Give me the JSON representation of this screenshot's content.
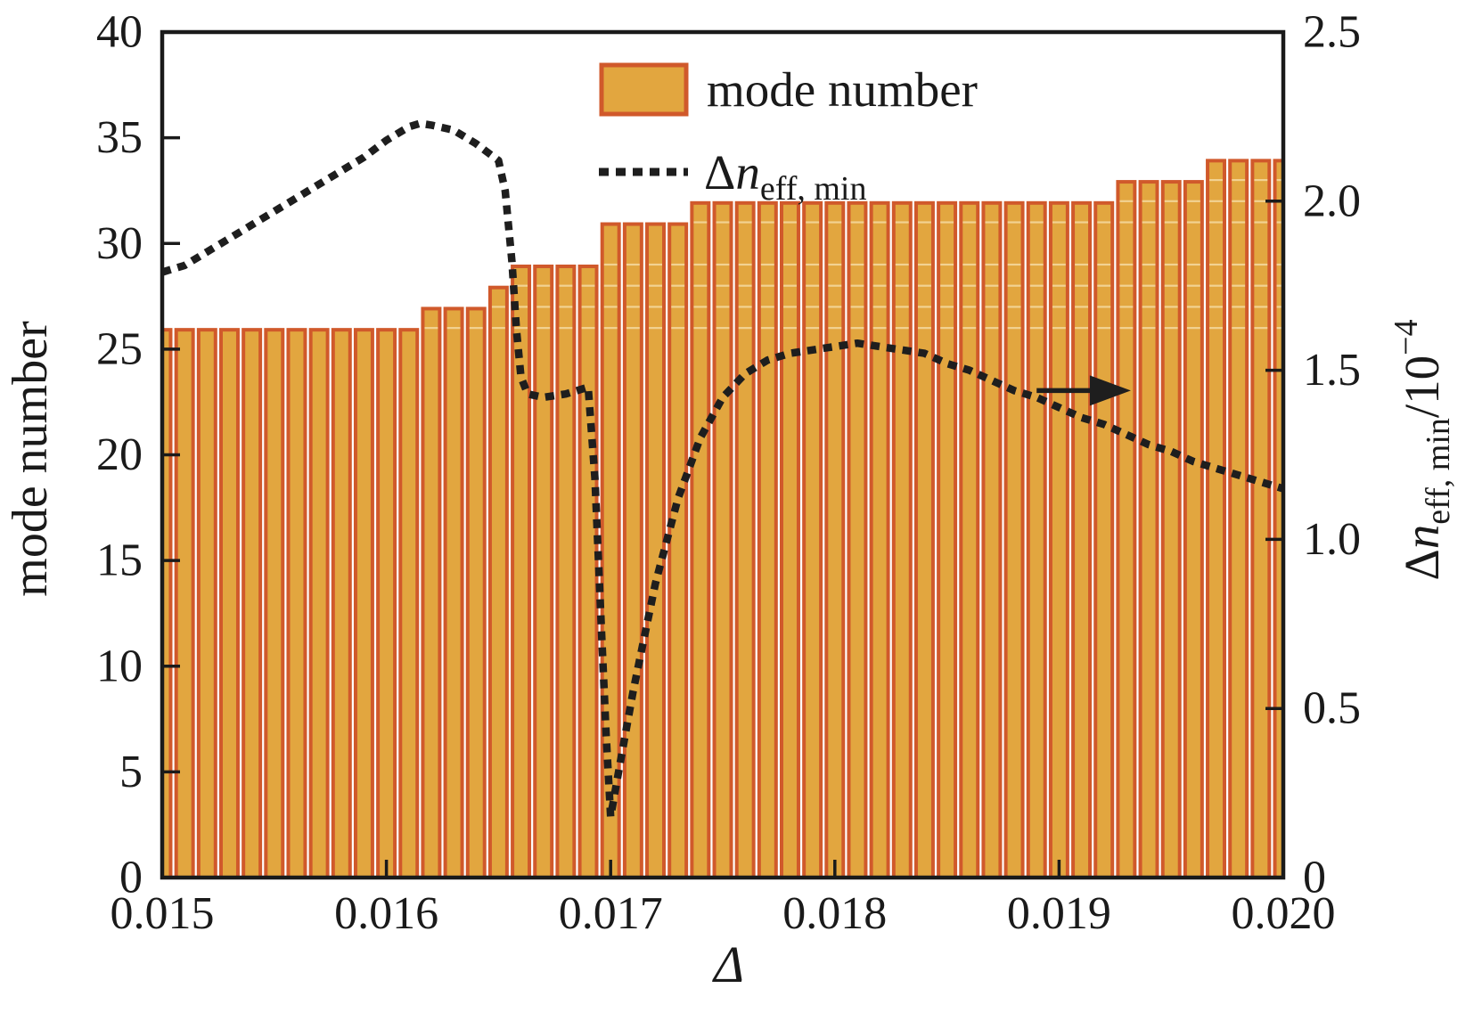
{
  "chart_data": {
    "type": "bar",
    "title": "",
    "xlabel": "Δ",
    "ylabel_left": "mode number",
    "ylabel_right_parts": {
      "prefix": "Δ",
      "var": "n",
      "sub": "eff, min",
      "slash": "/10",
      "sup": "−4"
    },
    "xlim": [
      0.015,
      0.02
    ],
    "ylim_left": [
      0,
      40
    ],
    "ylim_right": [
      0,
      2.5
    ],
    "grid": false,
    "legend_position": "upper center inside",
    "x_tick_values": [
      0.015,
      0.016,
      0.017,
      0.018,
      0.019,
      0.02
    ],
    "x_tick_labels": [
      "0.015",
      "0.016",
      "0.017",
      "0.018",
      "0.019",
      "0.020"
    ],
    "y_left_tick_values": [
      0,
      5,
      10,
      15,
      20,
      25,
      30,
      35,
      40
    ],
    "y_left_tick_labels": [
      "0",
      "5",
      "10",
      "15",
      "20",
      "25",
      "30",
      "35",
      "40"
    ],
    "y_right_tick_values": [
      0,
      0.5,
      1.0,
      1.5,
      2.0,
      2.5
    ],
    "y_right_tick_labels": [
      "0",
      "0.5",
      "1.0",
      "1.5",
      "2.0",
      "2.5"
    ],
    "categories": [
      0.015,
      0.0151,
      0.0152,
      0.0153,
      0.0154,
      0.0155,
      0.0156,
      0.0157,
      0.0158,
      0.0159,
      0.016,
      0.0161,
      0.0162,
      0.0163,
      0.0164,
      0.0165,
      0.0166,
      0.0167,
      0.0168,
      0.0169,
      0.017,
      0.0171,
      0.0172,
      0.0173,
      0.0174,
      0.0175,
      0.0176,
      0.0177,
      0.0178,
      0.0179,
      0.018,
      0.0181,
      0.0182,
      0.0183,
      0.0184,
      0.0185,
      0.0186,
      0.0187,
      0.0188,
      0.0189,
      0.019,
      0.0191,
      0.0192,
      0.0193,
      0.0194,
      0.0195,
      0.0196,
      0.0197,
      0.0198,
      0.0199,
      0.02
    ],
    "series": [
      {
        "name": "mode number",
        "type": "bar",
        "axis": "left",
        "values": [
          26,
          26,
          26,
          26,
          26,
          26,
          26,
          26,
          26,
          26,
          26,
          26,
          27,
          27,
          27,
          28,
          29,
          29,
          29,
          29,
          31,
          31,
          31,
          31,
          32,
          32,
          32,
          32,
          32,
          32,
          32,
          32,
          32,
          32,
          32,
          32,
          32,
          32,
          32,
          32,
          32,
          32,
          32,
          33,
          33,
          33,
          33,
          34,
          34,
          34,
          34
        ]
      },
      {
        "name": "Δn_eff,min",
        "type": "line",
        "axis": "right",
        "points": [
          [
            0.015,
            1.79
          ],
          [
            0.0151,
            1.81
          ],
          [
            0.0152,
            1.85
          ],
          [
            0.0153,
            1.89
          ],
          [
            0.0154,
            1.93
          ],
          [
            0.0155,
            1.97
          ],
          [
            0.0156,
            2.01
          ],
          [
            0.0157,
            2.05
          ],
          [
            0.0158,
            2.09
          ],
          [
            0.0159,
            2.13
          ],
          [
            0.016,
            2.18
          ],
          [
            0.0161,
            2.22
          ],
          [
            0.01615,
            2.23
          ],
          [
            0.0162,
            2.225
          ],
          [
            0.0163,
            2.21
          ],
          [
            0.0164,
            2.17
          ],
          [
            0.0165,
            2.12
          ],
          [
            0.01653,
            2.03
          ],
          [
            0.01656,
            1.82
          ],
          [
            0.01658,
            1.62
          ],
          [
            0.0166,
            1.48
          ],
          [
            0.01663,
            1.43
          ],
          [
            0.0167,
            1.42
          ],
          [
            0.0168,
            1.43
          ],
          [
            0.0169,
            1.45
          ],
          [
            0.01693,
            1.18
          ],
          [
            0.01696,
            0.72
          ],
          [
            0.01698,
            0.42
          ],
          [
            0.017,
            0.18
          ],
          [
            0.01704,
            0.33
          ],
          [
            0.0171,
            0.55
          ],
          [
            0.01715,
            0.71
          ],
          [
            0.0172,
            0.87
          ],
          [
            0.0173,
            1.12
          ],
          [
            0.0174,
            1.3
          ],
          [
            0.0175,
            1.42
          ],
          [
            0.0176,
            1.49
          ],
          [
            0.0177,
            1.53
          ],
          [
            0.0178,
            1.55
          ],
          [
            0.018,
            1.57
          ],
          [
            0.0181,
            1.58
          ],
          [
            0.0182,
            1.57
          ],
          [
            0.0183,
            1.56
          ],
          [
            0.0184,
            1.55
          ],
          [
            0.0185,
            1.52
          ],
          [
            0.0186,
            1.5
          ],
          [
            0.0187,
            1.47
          ],
          [
            0.0188,
            1.44
          ],
          [
            0.0189,
            1.42
          ],
          [
            0.019,
            1.39
          ],
          [
            0.0191,
            1.36
          ],
          [
            0.0192,
            1.34
          ],
          [
            0.0193,
            1.31
          ],
          [
            0.0194,
            1.28
          ],
          [
            0.0195,
            1.26
          ],
          [
            0.0196,
            1.23
          ],
          [
            0.0197,
            1.21
          ],
          [
            0.0198,
            1.19
          ],
          [
            0.0199,
            1.17
          ],
          [
            0.02,
            1.15
          ]
        ]
      }
    ],
    "bar_level_lines": [
      26,
      27,
      28,
      29,
      31,
      32,
      33
    ],
    "annotations": {
      "right_axis_arrow": {
        "x_from": 0.0189,
        "x_to": 0.01932,
        "y_right": 1.44,
        "direction": "right"
      }
    },
    "legend": {
      "items": [
        {
          "swatch": "bar",
          "label": "mode number"
        },
        {
          "swatch": "dotted-line",
          "label_delta": "Δ",
          "label_var": "n",
          "label_sub": "eff, min"
        }
      ]
    },
    "colors": {
      "bar_fill": "#e2a63f",
      "bar_edge": "#d0592b",
      "bar_level_line": "rgba(255,246,215,0.55)",
      "line": "#1e1e1e",
      "axis": "#1a1a1a",
      "background": "#ffffff"
    }
  }
}
